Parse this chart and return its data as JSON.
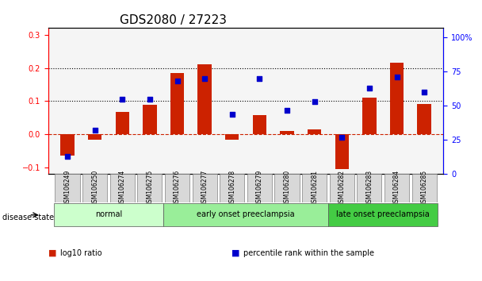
{
  "title": "GDS2080 / 27223",
  "samples": [
    "GSM106249",
    "GSM106250",
    "GSM106274",
    "GSM106275",
    "GSM106276",
    "GSM106277",
    "GSM106278",
    "GSM106279",
    "GSM106280",
    "GSM106281",
    "GSM106282",
    "GSM106283",
    "GSM106284",
    "GSM106285"
  ],
  "log10_ratio": [
    -0.065,
    -0.015,
    0.068,
    0.088,
    0.185,
    0.21,
    -0.015,
    0.058,
    0.01,
    0.015,
    -0.105,
    0.11,
    0.215,
    0.092
  ],
  "percentile_rank": [
    13,
    32,
    55,
    55,
    68,
    70,
    44,
    70,
    47,
    53,
    27,
    63,
    71,
    60
  ],
  "groups": [
    {
      "label": "normal",
      "start": 0,
      "end": 4,
      "color": "#ccffcc"
    },
    {
      "label": "early onset preeclampsia",
      "start": 4,
      "end": 10,
      "color": "#99ee99"
    },
    {
      "label": "late onset preeclampsia",
      "start": 10,
      "end": 14,
      "color": "#44cc44"
    }
  ],
  "bar_color": "#cc2200",
  "scatter_color": "#0000cc",
  "ylim_left": [
    -0.12,
    0.32
  ],
  "ylim_right": [
    0,
    107
  ],
  "yticks_left": [
    -0.1,
    0.0,
    0.1,
    0.2,
    0.3
  ],
  "yticks_right": [
    0,
    25,
    50,
    75,
    100
  ],
  "ytick_labels_right": [
    "0",
    "25",
    "50",
    "75",
    "100%"
  ],
  "hlines": [
    0.1,
    0.2
  ],
  "hline_zero_color": "#cc2200",
  "legend_items": [
    {
      "label": "log10 ratio",
      "color": "#cc2200",
      "marker": "s"
    },
    {
      "label": "percentile rank within the sample",
      "color": "#0000cc",
      "marker": "s"
    }
  ],
  "disease_state_label": "disease state",
  "xlabel_color": "black",
  "title_fontsize": 11,
  "tick_fontsize": 7,
  "bar_width": 0.5
}
